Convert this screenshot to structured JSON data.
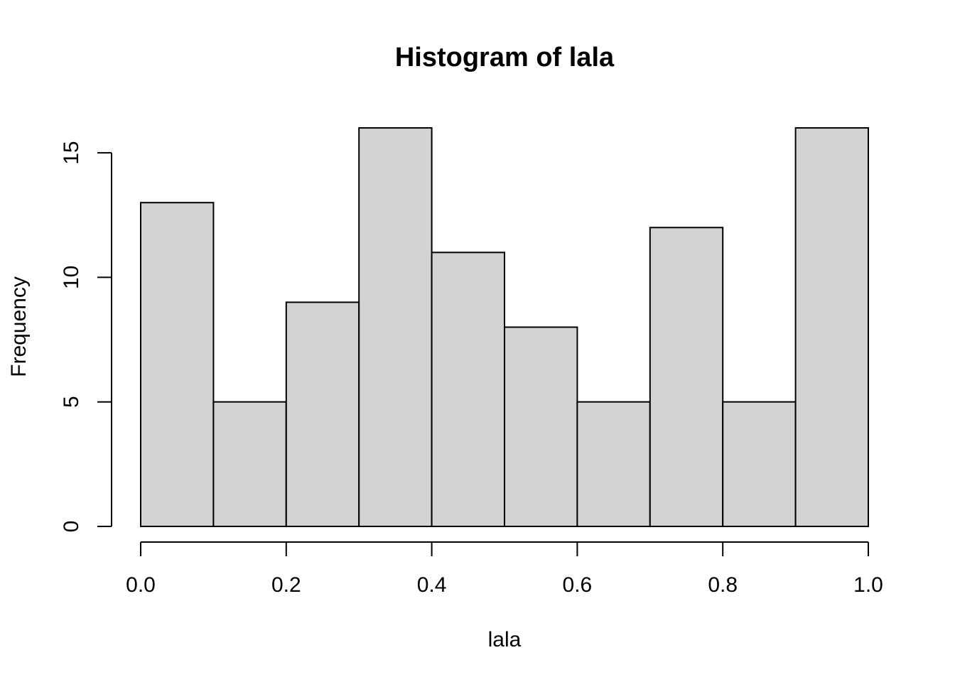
{
  "chart_data": {
    "type": "bar",
    "title": "Histogram of lala",
    "xlabel": "lala",
    "ylabel": "Frequency",
    "bin_edges": [
      0.0,
      0.1,
      0.2,
      0.3,
      0.4,
      0.5,
      0.6,
      0.7,
      0.8,
      0.9,
      1.0
    ],
    "values": [
      13,
      5,
      9,
      16,
      11,
      8,
      5,
      12,
      5,
      16
    ],
    "xlim": [
      0,
      1
    ],
    "ylim": [
      0,
      16
    ],
    "x_ticks": [
      "0.0",
      "0.2",
      "0.4",
      "0.6",
      "0.8",
      "1.0"
    ],
    "y_ticks": [
      "0",
      "5",
      "10",
      "15"
    ],
    "bar_fill": "#d3d3d3",
    "bar_stroke": "#000000",
    "grid": false,
    "legend": "none"
  }
}
